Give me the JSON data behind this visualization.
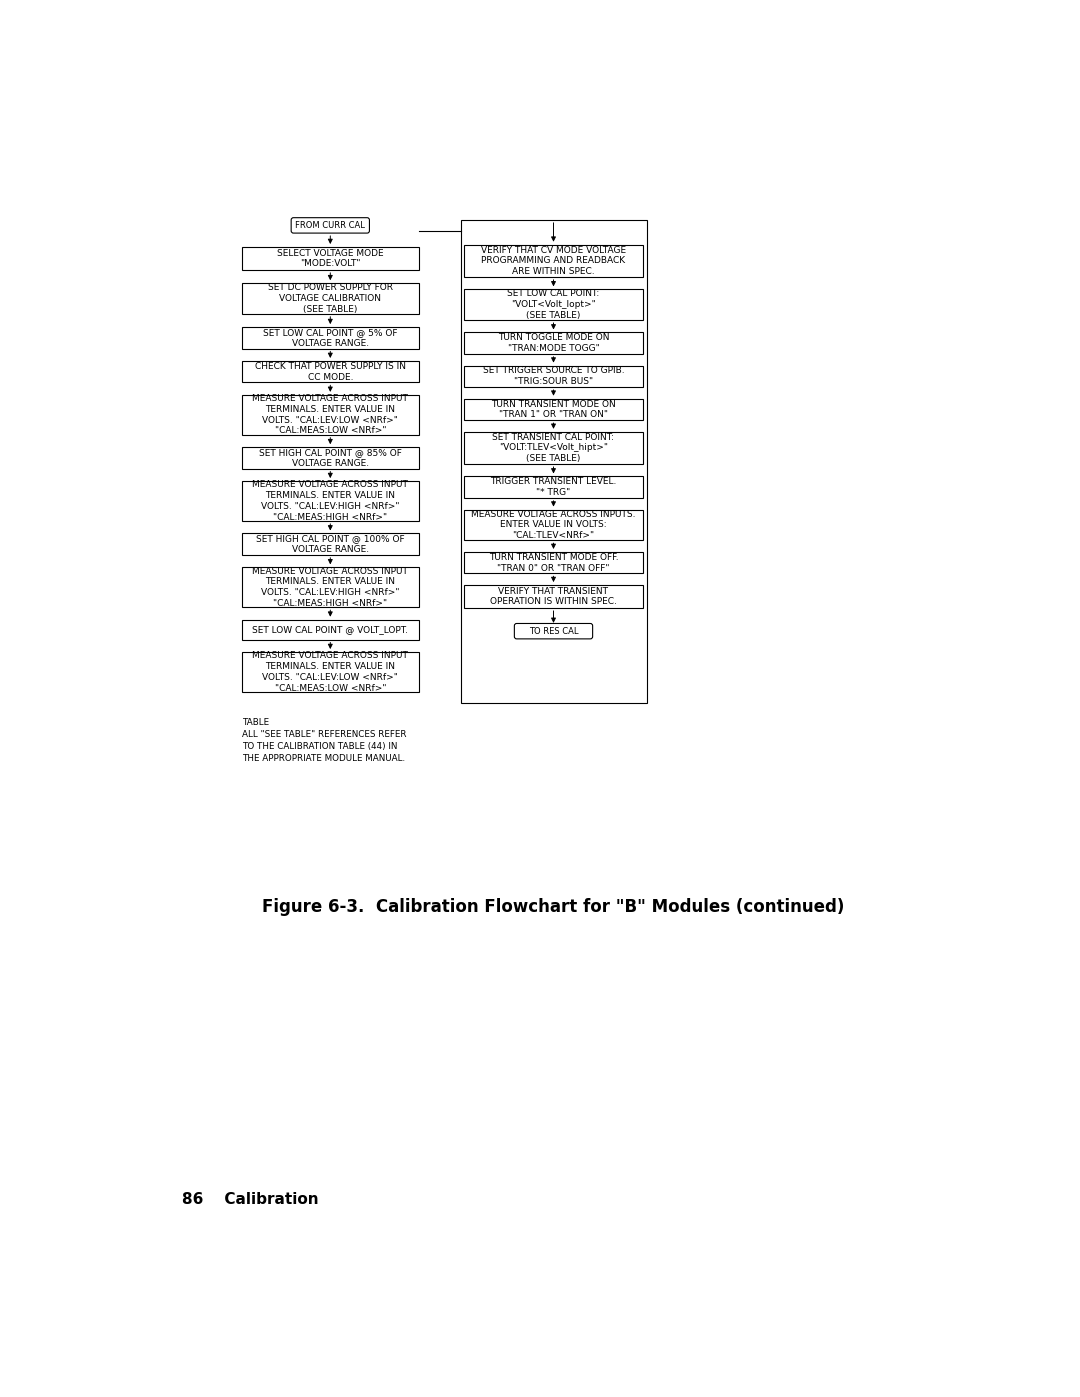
{
  "bg_color": "#ffffff",
  "figure_caption": "Figure 6-3.  Calibration Flowchart for \"B\" Modules (continued)",
  "page_label": "86    Calibration",
  "table_note": "TABLE\nALL \"SEE TABLE\" REFERENCES REFER\nTO THE CALIBRATION TABLE (44) IN\nTHE APPROPRIATE MODULE MANUAL.",
  "left_terminal_top": "FROM CURR CAL",
  "left_boxes": [
    "SELECT VOLTAGE MODE\n\"MODE:VOLT\"",
    "SET DC POWER SUPPLY FOR\nVOLTAGE CALIBRATION\n(SEE TABLE)",
    "SET LOW CAL POINT @ 5% OF\nVOLTAGE RANGE.",
    "CHECK THAT POWER SUPPLY IS IN\nCC MODE.",
    "MEASURE VOLTAGE ACROSS INPUT\nTERMINALS. ENTER VALUE IN\nVOLTS. \"CAL:LEV:LOW <NRf>\"\n\"CAL:MEAS:LOW <NRf>\"",
    "SET HIGH CAL POINT @ 85% OF\nVOLTAGE RANGE.",
    "MEASURE VOLTAGE ACROSS INPUT\nTERMINALS. ENTER VALUE IN\nVOLTS. \"CAL:LEV:HIGH <NRf>\"\n\"CAL:MEAS:HIGH <NRf>\"",
    "SET HIGH CAL POINT @ 100% OF\nVOLTAGE RANGE.",
    "MEASURE VOLTAGE ACROSS INPUT\nTERMINALS. ENTER VALUE IN\nVOLTS. \"CAL:LEV:HIGH <NRf>\"\n\"CAL:MEAS:HIGH <NRf>\"",
    "SET LOW CAL POINT @ VOLT_LOPT.",
    "MEASURE VOLTAGE ACROSS INPUT\nTERMINALS. ENTER VALUE IN\nVOLTS. \"CAL:LEV:LOW <NRf>\"\n\"CAL:MEAS:LOW <NRf>\""
  ],
  "right_boxes": [
    "VERIFY THAT CV MODE VOLTAGE\nPROGRAMMING AND READBACK\nARE WITHIN SPEC.",
    "SET LOW CAL POINT:\n\"VOLT<Volt_lopt>\"\n(SEE TABLE)",
    "TURN TOGGLE MODE ON\n\"TRAN:MODE TOGG\"",
    "SET TRIGGER SOURCE TO GPIB.\n\"TRIG:SOUR BUS\"",
    "TURN TRANSIENT MODE ON\n\"TRAN 1\" OR \"TRAN ON\"",
    "SET TRANSIENT CAL POINT:\n\"VOLT:TLEV<Volt_hipt>\"\n(SEE TABLE)",
    "TRIGGER TRANSIENT LEVEL.\n\"* TRG\"",
    "MEASURE VOLTAGE ACROSS INPUTS.\nENTER VALUE IN VOLTS:\n\"CAL:TLEV<NRf>\"",
    "TURN TRANSIENT MODE OFF.\n\"TRAN 0\" OR \"TRAN OFF\"",
    "VERIFY THAT TRANSIENT\nOPERATION IS WITHIN SPEC."
  ],
  "right_terminal_bottom": "TO RES CAL"
}
